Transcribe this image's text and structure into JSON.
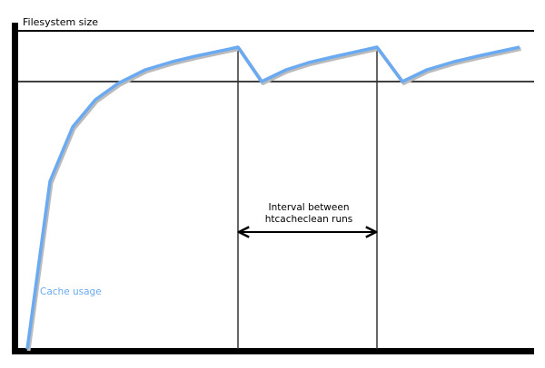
{
  "diagram": {
    "y_axis_label": "Filesystem size",
    "series_label": "Cache usage",
    "interval_label_line1": "Interval between",
    "interval_label_line2": "htcacheclean runs",
    "colors": {
      "cache_line": "#6aaaf2",
      "axis": "#000000",
      "label_cache": "#6aaaf2"
    }
  }
}
